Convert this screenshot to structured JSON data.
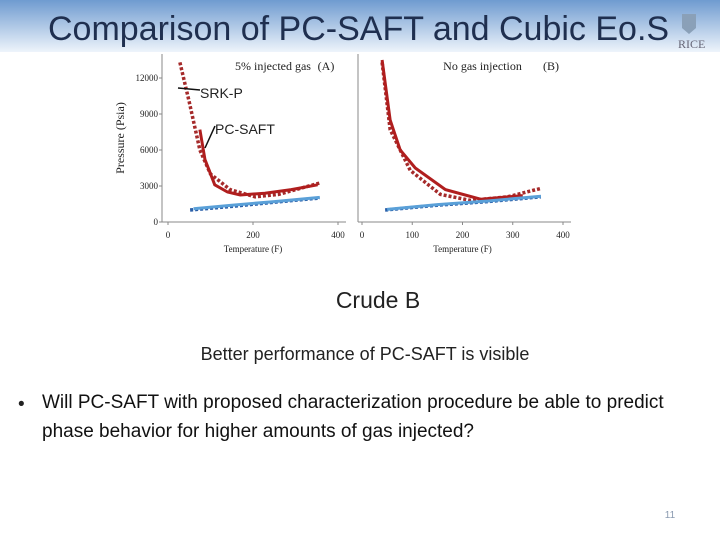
{
  "slide": {
    "title": "Comparison of PC-SAFT and Cubic Eo.S",
    "logo": "RICE",
    "subtitle": "Crude B",
    "caption": "Better performance of PC-SAFT is visible",
    "bullet": "Will PC-SAFT with proposed characterization procedure be able to predict phase behavior for higher amounts of gas injected?",
    "page_number": "11"
  },
  "chart_data": [
    {
      "type": "line",
      "title": "5% injected gas",
      "tag": "(A)",
      "ylabel": "Pressure (Psia)",
      "xlabel": "Temperature (F)",
      "xlim": [
        0,
        400
      ],
      "xticks": [
        0,
        200,
        400
      ],
      "ylim": [
        0,
        14000
      ],
      "yticks": [
        0,
        3000,
        6000,
        9000,
        12000
      ],
      "annotations": [
        "SRK-P",
        "PC-SAFT"
      ],
      "series": [
        {
          "color": "#a52a2a",
          "style": "dotted",
          "x": [
            28,
            50,
            75,
            100,
            146,
            205,
            260,
            357
          ],
          "values": [
            13300,
            10000,
            6000,
            4000,
            2700,
            2100,
            2300,
            3250
          ]
        },
        {
          "color": "#b01e1e",
          "style": "solid",
          "x": [
            75,
            87,
            110,
            140,
            170,
            228,
            290,
            352
          ],
          "values": [
            7700,
            5200,
            3100,
            2500,
            2250,
            2400,
            2700,
            3100
          ]
        },
        {
          "color": "#2a5fa8",
          "style": "dotted",
          "x": [
            52,
            150,
            250,
            357
          ],
          "values": [
            1000,
            1300,
            1650,
            2000
          ]
        },
        {
          "color": "#5aa0d8",
          "style": "solid",
          "x": [
            60,
            150,
            250,
            357
          ],
          "values": [
            1100,
            1400,
            1700,
            2050
          ]
        }
      ]
    },
    {
      "type": "line",
      "title": "No gas injection",
      "tag": "(B)",
      "xlabel": "Temperature (F)",
      "xlim": [
        0,
        400
      ],
      "xticks": [
        0,
        100,
        200,
        300,
        400
      ],
      "ylim": [
        0,
        14000
      ],
      "series": [
        {
          "color": "#a52a2a",
          "style": "dotted",
          "x": [
            40,
            56,
            96,
            156,
            216,
            290,
            356
          ],
          "values": [
            13300,
            7700,
            4300,
            2300,
            1800,
            2100,
            2800
          ]
        },
        {
          "color": "#b01e1e",
          "style": "solid",
          "x": [
            40,
            56,
            76,
            106,
            166,
            236,
            320
          ],
          "values": [
            13500,
            8500,
            6000,
            4500,
            2700,
            1900,
            2200
          ]
        },
        {
          "color": "#2a5fa8",
          "style": "dotted",
          "x": [
            46,
            150,
            250,
            356
          ],
          "values": [
            1000,
            1400,
            1700,
            2100
          ]
        },
        {
          "color": "#5aa0d8",
          "style": "solid",
          "x": [
            50,
            150,
            250,
            356
          ],
          "values": [
            1050,
            1450,
            1750,
            2150
          ]
        }
      ]
    }
  ]
}
